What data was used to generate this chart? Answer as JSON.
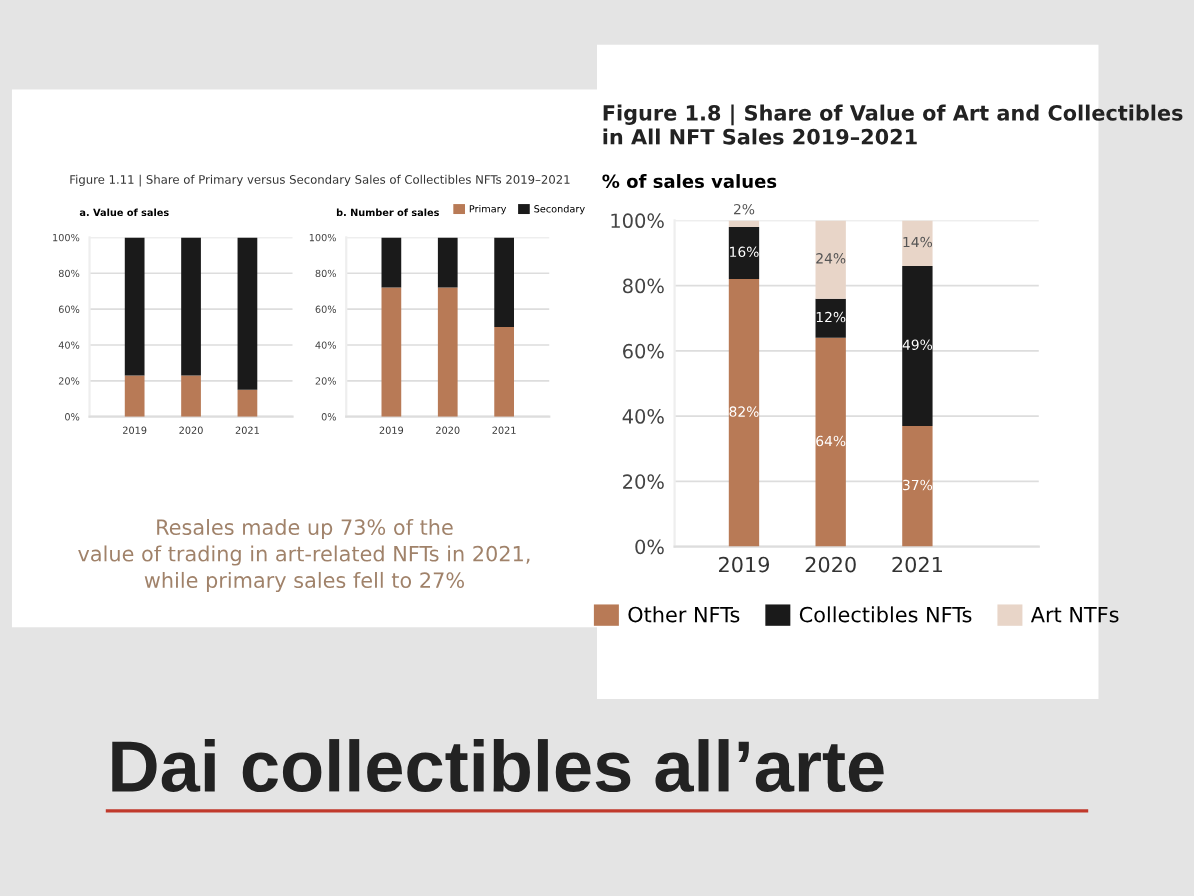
{
  "chart_data": [
    {
      "type": "bar",
      "stacked": true,
      "title": "Figure 1.11 | Share of Primary versus Secondary Sales of Collectibles NFTs 2019–2021",
      "subtitle": "a. Value of sales",
      "categories": [
        "2019",
        "2020",
        "2021"
      ],
      "series": [
        {
          "color": "#b87a56",
          "values": [
            23,
            23,
            15
          ]
        },
        {
          "color": "#1a1a1a",
          "values": [
            77,
            77,
            85
          ]
        }
      ],
      "ylim": [
        0,
        100
      ],
      "yticks": [
        {
          "value": 0,
          "label": "0%"
        },
        {
          "value": 20,
          "label": "20%"
        },
        {
          "value": 40,
          "label": "40%"
        },
        {
          "value": 60,
          "label": "60%"
        },
        {
          "value": 80,
          "label": "80%"
        },
        {
          "value": 100,
          "label": "100%"
        }
      ],
      "grid": "y",
      "legend": false
    },
    {
      "type": "bar",
      "stacked": true,
      "title": "b. Number of sales",
      "categories": [
        "2019",
        "2020",
        "2021"
      ],
      "series": [
        {
          "name": "Primary",
          "color": "#b87a56",
          "values": [
            72,
            72,
            50
          ]
        },
        {
          "name": "Secondary",
          "color": "#1a1a1a",
          "values": [
            28,
            28,
            50
          ]
        }
      ],
      "ylim": [
        0,
        100
      ],
      "yticks": [
        {
          "value": 0,
          "label": "0%"
        },
        {
          "value": 20,
          "label": "20%"
        },
        {
          "value": 40,
          "label": "40%"
        },
        {
          "value": 60,
          "label": "60%"
        },
        {
          "value": 80,
          "label": "80%"
        },
        {
          "value": 100,
          "label": "100%"
        }
      ],
      "grid": "y",
      "legend": "top right"
    },
    {
      "type": "bar",
      "stacked": true,
      "title": "Figure 1.8 | Share of Value of Art and Collectibles in All NFT Sales 2019–2021",
      "ylabel": "% of sales values",
      "categories": [
        "2019",
        "2020",
        "2021"
      ],
      "series": [
        {
          "name": "Other NFTs",
          "color": "#b87a56",
          "values": [
            82,
            64,
            37
          ],
          "value_labels": [
            "82%",
            "64%",
            "37%"
          ]
        },
        {
          "name": "Collectibles NFTs",
          "color": "#1a1a1a",
          "values": [
            16,
            12,
            49
          ],
          "value_labels": [
            "16%",
            "12%",
            "49%"
          ]
        },
        {
          "name": "Art NTFs",
          "color": "#e8d5c8",
          "values": [
            2,
            24,
            14
          ],
          "value_labels": [
            "2%",
            "24%",
            "14%"
          ]
        }
      ],
      "ylim": [
        0,
        100
      ],
      "yticks": [
        {
          "value": 0,
          "label": "0%"
        },
        {
          "value": 20,
          "label": "20%"
        },
        {
          "value": 40,
          "label": "40%"
        },
        {
          "value": 60,
          "label": "60%"
        },
        {
          "value": 80,
          "label": "80%"
        },
        {
          "value": 100,
          "label": "100%"
        }
      ],
      "grid": "y",
      "legend": "bottom"
    },
    {
      "type": "other",
      "title": "Dai collectibles all’arte",
      "annotations": [
        "Resales made up 73% of the\nvalue of trading in art-related NFTs in 2021,\nwhile primary sales fell to 27%"
      ]
    }
  ]
}
